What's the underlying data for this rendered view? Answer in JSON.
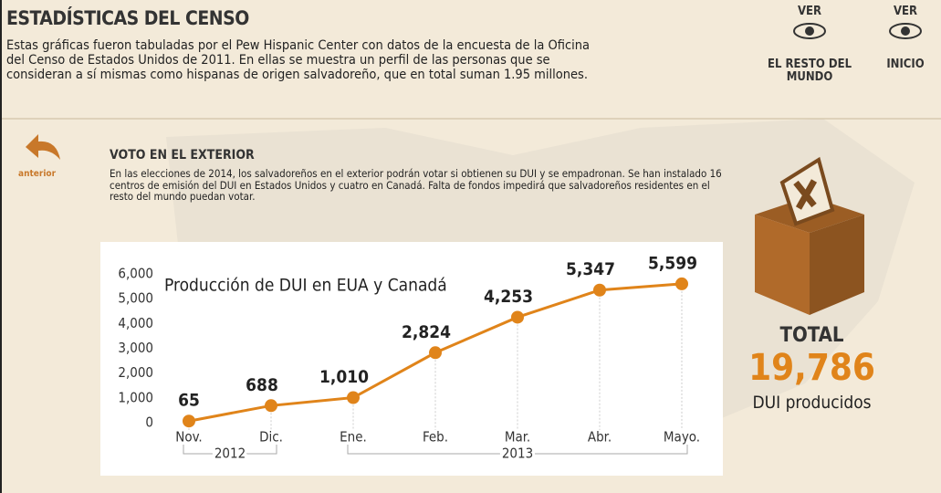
{
  "header": {
    "title": "ESTADÍSTICAS DEL CENSO",
    "text": "Estas gráficas fueron tabuladas por el Pew Hispanic Center con datos de la encuesta de la Oficina del Censo de Estados Unidos de 2011. En ellas se muestra un perfil de las personas que se consideran a sí mismas como hispanas de origen salvadoreño, que en total suman 1.95 millones."
  },
  "nav": [
    {
      "top": "VER",
      "label": "EL RESTO DEL MUNDO"
    },
    {
      "top": "VER",
      "label": "INICIO"
    }
  ],
  "back": "anterior",
  "section": {
    "title": "VOTO EN EL EXTERIOR",
    "text": "En las elecciones de 2014, los salvadoreños en el exterior podrán votar si obtienen su DUI y se empadronan. Se han instalado 16 centros de emisión del DUI en Estados Unidos y cuatro en Canadá. Falta de fondos impedirá que salvadoreños residentes en el resto del mundo puedan votar."
  },
  "total": {
    "label": "TOTAL",
    "value": "19,786",
    "caption": "DUI producidos"
  },
  "chart_data": {
    "type": "line",
    "title": "Producción de DUI en EUA y Canadá",
    "categories": [
      "Nov.",
      "Dic.",
      "Ene.",
      "Feb.",
      "Mar.",
      "Abr.",
      "Mayo."
    ],
    "groups": [
      {
        "label": "2012",
        "count": 2
      },
      {
        "label": "2013",
        "count": 5
      }
    ],
    "values": [
      65,
      688,
      1010,
      2824,
      4253,
      5347,
      5599
    ],
    "value_labels": [
      "65",
      "688",
      "1,010",
      "2,824",
      "4,253",
      "5,347",
      "5,599"
    ],
    "color": "#e0841a",
    "ylim": [
      0,
      6000
    ],
    "yticks": [
      0,
      {
        "value": 1000,
        "label": "1,000"
      },
      {
        "value": 2000,
        "label": "2,000"
      },
      {
        "value": 3000,
        "label": "3,000"
      },
      {
        "value": 4000,
        "label": "4,000"
      },
      {
        "value": 5000,
        "label": "5,000"
      },
      {
        "value": 6000,
        "label": "6,000"
      }
    ]
  }
}
